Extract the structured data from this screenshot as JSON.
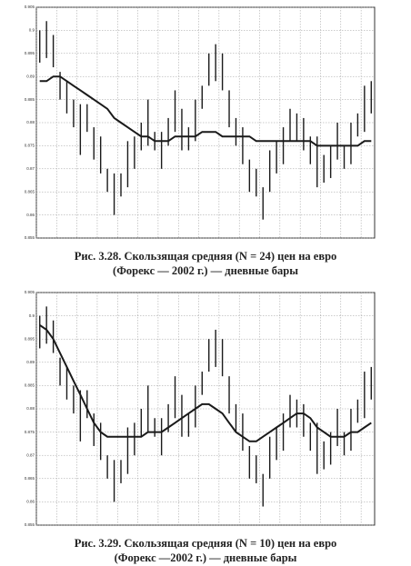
{
  "chart_data": [
    {
      "type": "ohlc",
      "color": "#1a1a1a",
      "grid": true,
      "caption": [
        "Рис. 3.28. Скользящая средняя (N = 24) цен на евро",
        "(Форекс — 2002 г.) — дневные бары"
      ],
      "ylim": [
        0.855,
        0.905
      ],
      "yticks": [
        0.855,
        0.86,
        0.865,
        0.87,
        0.875,
        0.88,
        0.885,
        0.89,
        0.895,
        0.9,
        0.905
      ],
      "high": [
        0.9,
        0.902,
        0.899,
        0.891,
        0.889,
        0.885,
        0.884,
        0.884,
        0.879,
        0.877,
        0.87,
        0.869,
        0.869,
        0.876,
        0.877,
        0.88,
        0.885,
        0.878,
        0.878,
        0.881,
        0.887,
        0.883,
        0.879,
        0.885,
        0.888,
        0.895,
        0.897,
        0.895,
        0.887,
        0.881,
        0.879,
        0.872,
        0.87,
        0.866,
        0.874,
        0.876,
        0.879,
        0.883,
        0.882,
        0.881,
        0.877,
        0.877,
        0.873,
        0.875,
        0.88,
        0.875,
        0.88,
        0.882,
        0.888,
        0.889
      ],
      "low": [
        0.893,
        0.894,
        0.892,
        0.885,
        0.882,
        0.879,
        0.873,
        0.878,
        0.872,
        0.869,
        0.865,
        0.86,
        0.864,
        0.866,
        0.87,
        0.874,
        0.875,
        0.874,
        0.87,
        0.875,
        0.878,
        0.874,
        0.874,
        0.876,
        0.883,
        0.888,
        0.889,
        0.887,
        0.879,
        0.875,
        0.871,
        0.865,
        0.864,
        0.859,
        0.865,
        0.869,
        0.871,
        0.876,
        0.876,
        0.874,
        0.871,
        0.866,
        0.867,
        0.868,
        0.872,
        0.87,
        0.871,
        0.877,
        0.878,
        0.882
      ],
      "ma": [
        0.889,
        0.889,
        0.89,
        0.89,
        0.889,
        0.888,
        0.887,
        0.886,
        0.885,
        0.884,
        0.883,
        0.881,
        0.88,
        0.879,
        0.878,
        0.877,
        0.877,
        0.876,
        0.876,
        0.876,
        0.877,
        0.877,
        0.877,
        0.877,
        0.878,
        0.878,
        0.878,
        0.877,
        0.877,
        0.877,
        0.877,
        0.877,
        0.876,
        0.876,
        0.876,
        0.876,
        0.876,
        0.876,
        0.876,
        0.876,
        0.876,
        0.875,
        0.875,
        0.875,
        0.875,
        0.875,
        0.875,
        0.875,
        0.876,
        0.876
      ]
    },
    {
      "type": "ohlc",
      "color": "#1a1a1a",
      "grid": true,
      "caption": [
        "Рис. 3.29. Скользящая средняя (N = 10) цен на евро",
        "(Форекс —2002 г.) — дневные бары"
      ],
      "ylim": [
        0.855,
        0.905
      ],
      "yticks": [
        0.855,
        0.86,
        0.865,
        0.87,
        0.875,
        0.88,
        0.885,
        0.89,
        0.895,
        0.9,
        0.905
      ],
      "high": [
        0.9,
        0.902,
        0.899,
        0.891,
        0.889,
        0.885,
        0.884,
        0.884,
        0.879,
        0.877,
        0.87,
        0.869,
        0.869,
        0.876,
        0.877,
        0.88,
        0.885,
        0.878,
        0.878,
        0.881,
        0.887,
        0.883,
        0.879,
        0.885,
        0.888,
        0.895,
        0.897,
        0.895,
        0.887,
        0.881,
        0.879,
        0.872,
        0.87,
        0.866,
        0.874,
        0.876,
        0.879,
        0.883,
        0.882,
        0.881,
        0.877,
        0.877,
        0.873,
        0.875,
        0.88,
        0.875,
        0.88,
        0.882,
        0.888,
        0.889
      ],
      "low": [
        0.893,
        0.894,
        0.892,
        0.885,
        0.882,
        0.879,
        0.873,
        0.878,
        0.872,
        0.869,
        0.865,
        0.86,
        0.864,
        0.866,
        0.87,
        0.874,
        0.875,
        0.874,
        0.87,
        0.875,
        0.878,
        0.874,
        0.874,
        0.876,
        0.883,
        0.888,
        0.889,
        0.887,
        0.879,
        0.875,
        0.871,
        0.865,
        0.864,
        0.859,
        0.865,
        0.869,
        0.871,
        0.876,
        0.876,
        0.874,
        0.871,
        0.866,
        0.867,
        0.868,
        0.872,
        0.87,
        0.871,
        0.877,
        0.878,
        0.882
      ],
      "ma": [
        0.898,
        0.897,
        0.895,
        0.892,
        0.889,
        0.886,
        0.883,
        0.88,
        0.877,
        0.875,
        0.874,
        0.874,
        0.874,
        0.874,
        0.874,
        0.874,
        0.875,
        0.875,
        0.875,
        0.876,
        0.877,
        0.878,
        0.879,
        0.88,
        0.881,
        0.881,
        0.88,
        0.879,
        0.877,
        0.875,
        0.874,
        0.873,
        0.873,
        0.874,
        0.875,
        0.876,
        0.877,
        0.878,
        0.879,
        0.879,
        0.878,
        0.876,
        0.875,
        0.874,
        0.874,
        0.874,
        0.875,
        0.875,
        0.876,
        0.877
      ]
    }
  ]
}
